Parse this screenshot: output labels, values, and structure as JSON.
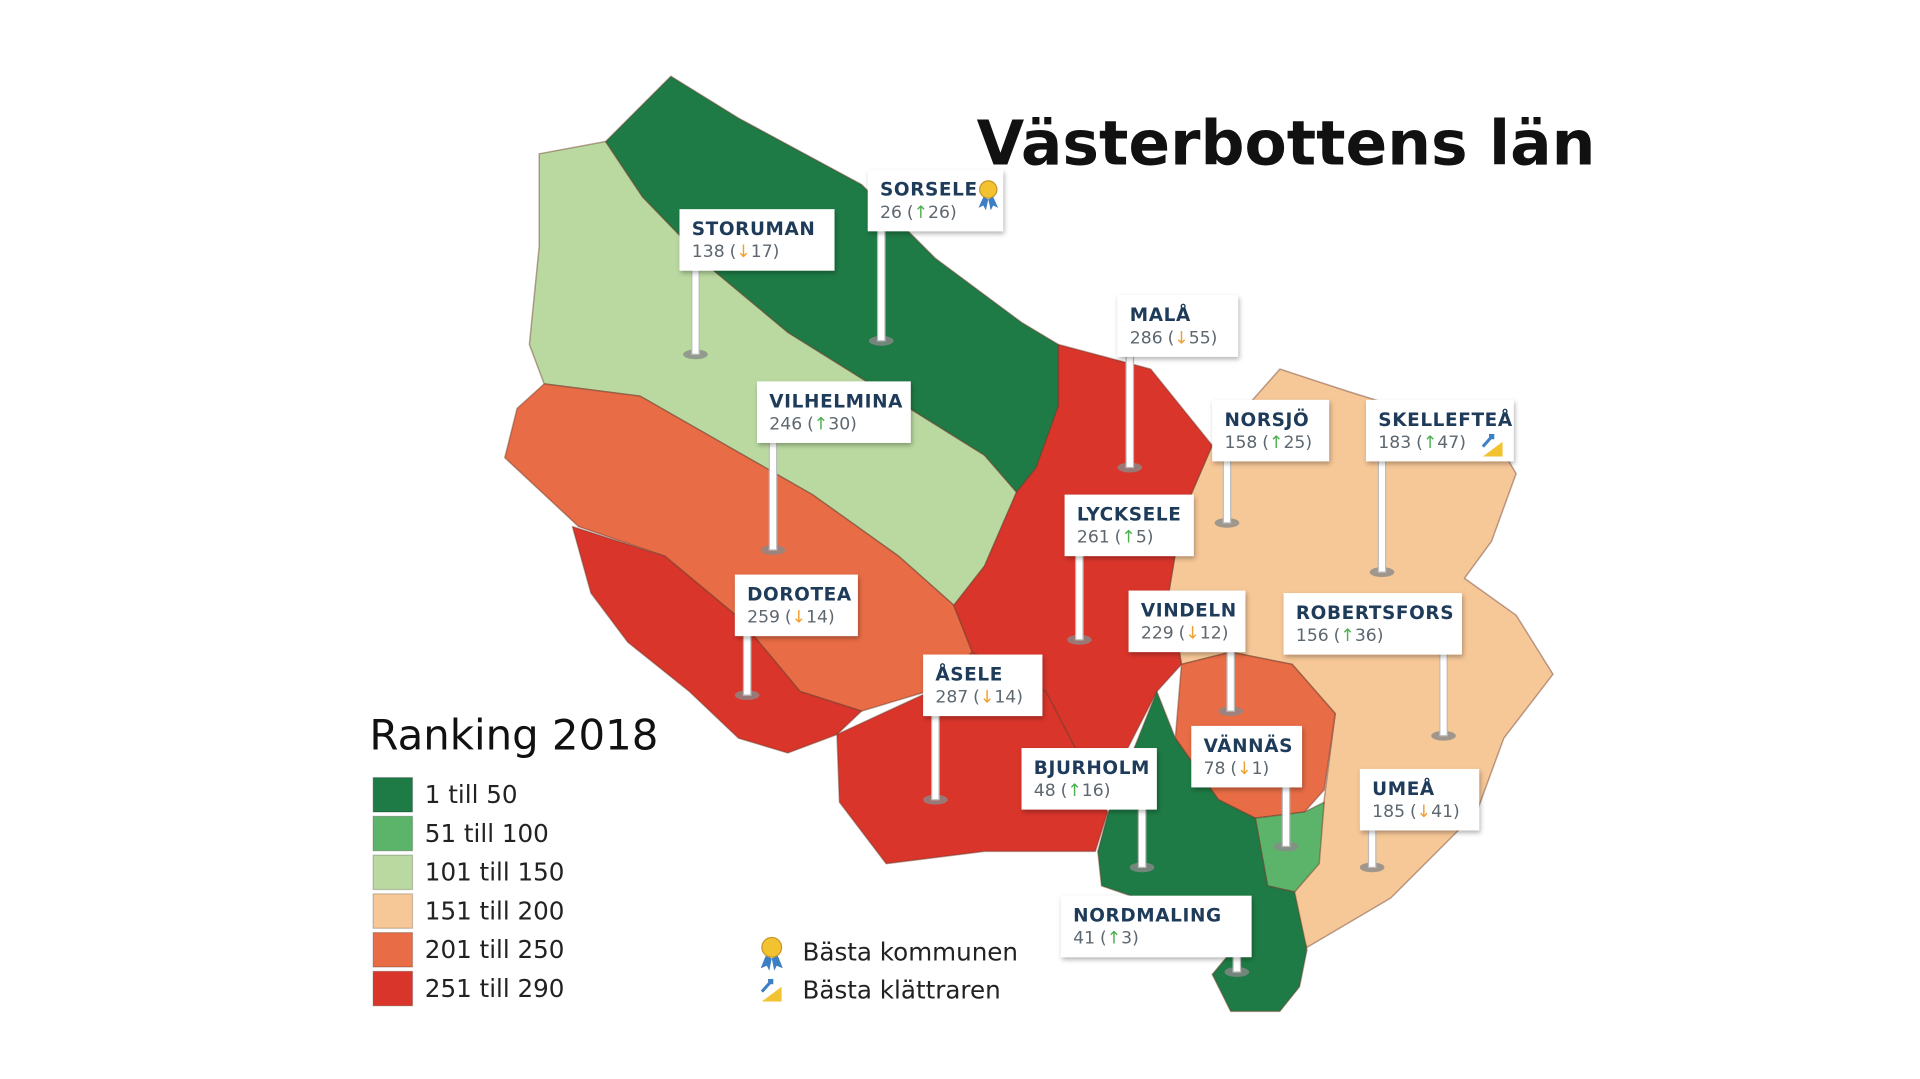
{
  "title": "Västerbottens län",
  "legend": {
    "title": "Ranking 2018",
    "items": [
      {
        "label": "1 till 50",
        "color": "#1e7b45"
      },
      {
        "label": "51 till 100",
        "color": "#5cb46a"
      },
      {
        "label": "101 till 150",
        "color": "#b9d9a0"
      },
      {
        "label": "151 till 200",
        "color": "#f6c797"
      },
      {
        "label": "201 till 250",
        "color": "#e86c45"
      },
      {
        "label": "251 till 290",
        "color": "#d9352b"
      }
    ]
  },
  "icon_legend": {
    "best": "Bästa kommunen",
    "climber": "Bästa klättraren"
  },
  "municipalities": [
    {
      "name": "STORUMAN",
      "rank": 138,
      "change": -17,
      "change_label": "(↓17)"
    },
    {
      "name": "SORSELE",
      "rank": 26,
      "change": 26,
      "change_label": "(↑26)"
    },
    {
      "name": "MALÅ",
      "rank": 286,
      "change": -55,
      "change_label": "(↓55)"
    },
    {
      "name": "VILHELMINA",
      "rank": 246,
      "change": 30,
      "change_label": "(↑30)"
    },
    {
      "name": "NORSJÖ",
      "rank": 158,
      "change": 25,
      "change_label": "(↑25)"
    },
    {
      "name": "SKELLEFTEÅ",
      "rank": 183,
      "change": 47,
      "change_label": "(↑47)"
    },
    {
      "name": "LYCKSELE",
      "rank": 261,
      "change": 5,
      "change_label": "(↑5)"
    },
    {
      "name": "DOROTEA",
      "rank": 259,
      "change": -14,
      "change_label": "(↓14)"
    },
    {
      "name": "VINDELN",
      "rank": 229,
      "change": -12,
      "change_label": "(↓12)"
    },
    {
      "name": "ROBERTSFORS",
      "rank": 156,
      "change": 36,
      "change_label": "(↑36)"
    },
    {
      "name": "ÅSELE",
      "rank": 287,
      "change": -14,
      "change_label": "(↓14)"
    },
    {
      "name": "BJURHOLM",
      "rank": 48,
      "change": 16,
      "change_label": "(↑16)"
    },
    {
      "name": "VÄNNÄS",
      "rank": 78,
      "change": -1,
      "change_label": "(↓1)"
    },
    {
      "name": "UMEÅ",
      "rank": 185,
      "change": -41,
      "change_label": "(↓41)"
    },
    {
      "name": "NORDMALING",
      "rank": 41,
      "change": 3,
      "change_label": "(↑3)"
    }
  ]
}
